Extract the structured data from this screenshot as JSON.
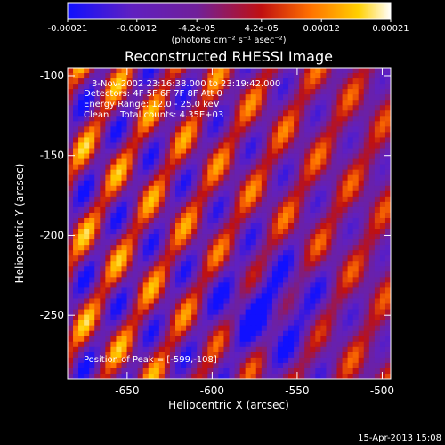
{
  "chart_data": {
    "type": "heatmap",
    "title": "Reconstructed RHESSI Image",
    "xlabel": "Heliocentric X (arcsec)",
    "ylabel": "Heliocentric Y (arcsec)",
    "xlim": [
      -685,
      -495
    ],
    "ylim": [
      -290,
      -95
    ],
    "x_ticks": [
      {
        "value": -650,
        "label": "-650"
      },
      {
        "value": -600,
        "label": "-600"
      },
      {
        "value": -550,
        "label": "-550"
      },
      {
        "value": -500,
        "label": "-500"
      }
    ],
    "y_ticks": [
      {
        "value": -100,
        "label": "-100"
      },
      {
        "value": -150,
        "label": "-150"
      },
      {
        "value": -200,
        "label": "-200"
      },
      {
        "value": -250,
        "label": "-250"
      }
    ],
    "colorbar": {
      "range": [
        -0.00021,
        0.00021
      ],
      "ticks": [
        {
          "value": -0.00021,
          "label": "-0.00021"
        },
        {
          "value": -0.00012,
          "label": "-0.00012"
        },
        {
          "value": -4.2e-05,
          "label": "-4.2e-05"
        },
        {
          "value": 4.2e-05,
          "label": "4.2e-05"
        },
        {
          "value": 0.00012,
          "label": "0.00012"
        },
        {
          "value": 0.00021,
          "label": "0.00021"
        }
      ],
      "units_label": "(photons cm⁻² s⁻¹ asec⁻²)",
      "colors": [
        "#1010ff",
        "#6020c0",
        "#70209a",
        "#c01010",
        "#ff7000",
        "#ffd000",
        "#ffffff"
      ]
    },
    "annotations": [
      "3-Nov-2002 23:16:38.000 to 23:19:42.000",
      "Detectors: 4F 5F 6F 7F 8F  Att 0",
      "Energy Range: 12.0 - 25.0 keV",
      "Clean    Total counts: 4.35E+03"
    ],
    "peak_text": "Position of Peak = [-599,-108]",
    "peak": {
      "x": -599,
      "y": -108
    }
  },
  "footer": {
    "timestamp": "15-Apr-2013 15:08"
  }
}
